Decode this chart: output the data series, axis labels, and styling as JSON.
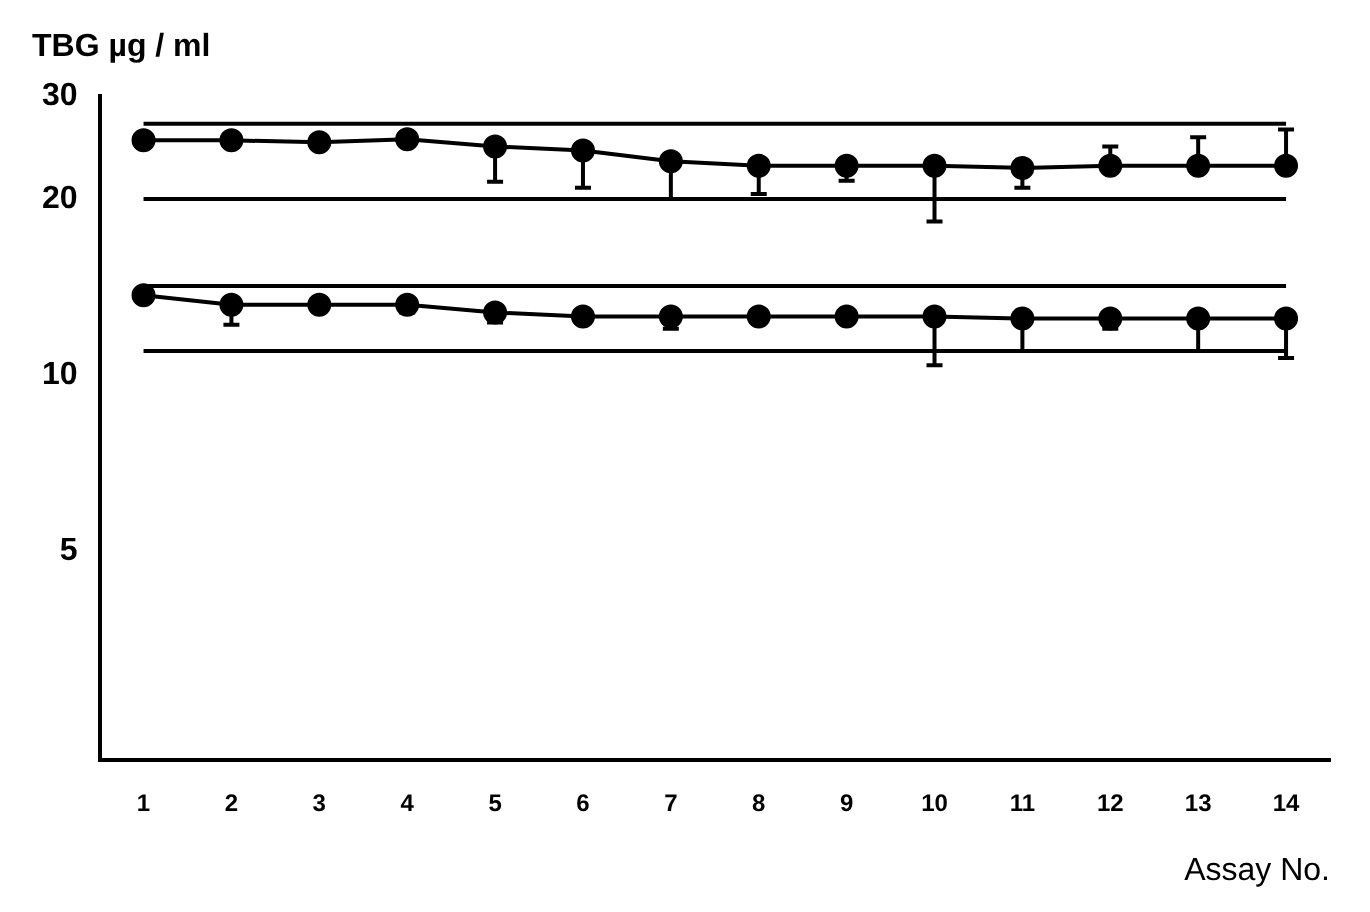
{
  "chart_data": {
    "type": "line",
    "categories": [
      "1",
      "2",
      "3",
      "4",
      "5",
      "6",
      "7",
      "8",
      "9",
      "10",
      "11",
      "12",
      "13",
      "14"
    ],
    "series": [
      {
        "color": "#000000",
        "values": [
          25.2,
          25.2,
          25.0,
          25.3,
          24.6,
          24.2,
          23.2,
          22.8,
          22.8,
          22.8,
          22.6,
          22.8,
          22.8,
          22.8
        ],
        "errors": [
          null,
          null,
          null,
          null,
          [
            21.4,
            24.6
          ],
          [
            20.9,
            24.2
          ],
          [
            20.0,
            23.2
          ],
          [
            20.4,
            22.8
          ],
          [
            21.5,
            22.8
          ],
          [
            18.3,
            22.8
          ],
          [
            20.9,
            22.6
          ],
          [
            22.8,
            24.6
          ],
          [
            22.8,
            25.5
          ],
          [
            22.8,
            26.3
          ]
        ]
      },
      {
        "color": "#000000",
        "values": [
          13.7,
          13.2,
          13.2,
          13.2,
          12.8,
          12.6,
          12.6,
          12.6,
          12.6,
          12.6,
          12.5,
          12.5,
          12.5,
          12.5
        ],
        "errors": [
          null,
          [
            12.2,
            13.2
          ],
          null,
          [
            12.8,
            13.2
          ],
          [
            12.3,
            12.8
          ],
          null,
          [
            12.0,
            12.6
          ],
          null,
          null,
          [
            10.4,
            12.6
          ],
          [
            11.0,
            12.5
          ],
          [
            12.0,
            12.5
          ],
          [
            11.0,
            12.5
          ],
          [
            10.7,
            12.5
          ]
        ]
      }
    ],
    "ref_lines": [
      {
        "axis": "y",
        "value": 26.9,
        "color": "#000000"
      },
      {
        "axis": "y",
        "value": 20,
        "color": "#000000"
      },
      {
        "axis": "y",
        "value": 14.2,
        "color": "#000000"
      },
      {
        "axis": "y",
        "value": 11.0,
        "color": "#000000"
      }
    ],
    "ylabel": "TBG µg / ml",
    "xlabel": "Assay No.",
    "log": true,
    "ylim": [
      2.2,
      30
    ],
    "yticks": [
      5,
      10,
      20,
      30
    ],
    "grid": false,
    "legend": false,
    "marker": "circle",
    "line_style": "solid"
  }
}
